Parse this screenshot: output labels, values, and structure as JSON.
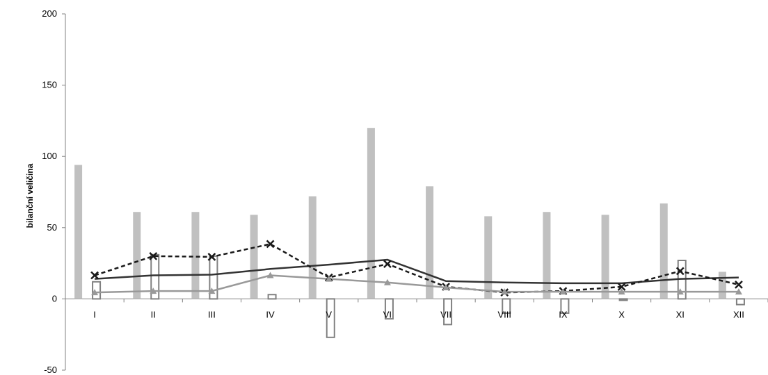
{
  "chart_data": {
    "type": "bar",
    "xlabel": "",
    "ylabel": "bilanční veličina",
    "ylim": [
      -50,
      200
    ],
    "yticks": [
      -50,
      0,
      50,
      100,
      150,
      200
    ],
    "grid": false,
    "legend": "none",
    "categories": [
      "I",
      "II",
      "III",
      "IV",
      "V",
      "VI",
      "VII",
      "VIII",
      "IX",
      "X",
      "XI",
      "XII"
    ],
    "series": [
      {
        "kind": "bar",
        "style": "filled",
        "color": "#c0c0c0",
        "values": [
          94,
          61,
          61,
          59,
          72,
          120,
          79,
          58,
          61,
          59,
          67,
          19
        ]
      },
      {
        "kind": "bar",
        "style": "outline",
        "color": "#808080",
        "values": [
          12,
          31,
          30,
          3,
          -27,
          -14,
          -18,
          -10,
          -10,
          -1,
          27,
          -4
        ]
      },
      {
        "kind": "line",
        "style": "solid",
        "color": "#333333",
        "values": [
          14,
          16.5,
          17,
          21,
          24,
          27.5,
          12.5,
          11.5,
          11,
          11,
          14,
          15
        ]
      },
      {
        "kind": "line",
        "style": "dashed",
        "marker": "x",
        "color": "#1a1a1a",
        "values": [
          16.5,
          30,
          29.5,
          38.5,
          15,
          24.5,
          8.5,
          4.5,
          5.5,
          8.5,
          19.5,
          10
        ]
      },
      {
        "kind": "line",
        "style": "solid",
        "marker": "triangle",
        "color": "#999999",
        "values": [
          4.5,
          5.5,
          5.5,
          16.5,
          14,
          11.5,
          8,
          5,
          5,
          5,
          5,
          5
        ]
      }
    ]
  }
}
